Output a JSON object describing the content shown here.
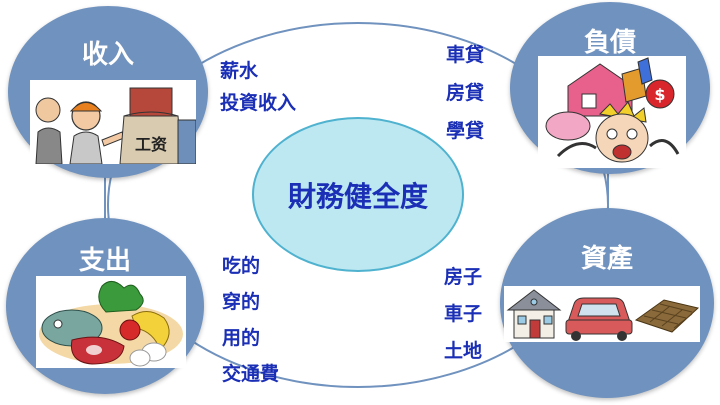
{
  "center": {
    "label": "財務健全度"
  },
  "nodes": {
    "income": {
      "title": "收入",
      "items": [
        "薪水",
        "投資收入"
      ],
      "image_icon": "worker-and-salary-bag-icon",
      "image_text": "工资"
    },
    "debt": {
      "title": "負債",
      "items": [
        "車貸",
        "房貸",
        "學貸"
      ],
      "image_icon": "stressed-person-with-debts-icon"
    },
    "expense": {
      "title": "支出",
      "items": [
        "吃的",
        "穿的",
        "用的",
        "交通費"
      ],
      "image_icon": "food-icon"
    },
    "assets": {
      "title": "資產",
      "items": [
        "房子",
        "車子",
        "土地"
      ],
      "image_icons": [
        "house-icon",
        "car-icon",
        "land-plot-icon"
      ]
    }
  },
  "colors": {
    "node_fill": "#7092be",
    "center_fill": "#bde8f2",
    "center_stroke": "#4fb2cf",
    "text_blue": "#1a2fb5"
  }
}
